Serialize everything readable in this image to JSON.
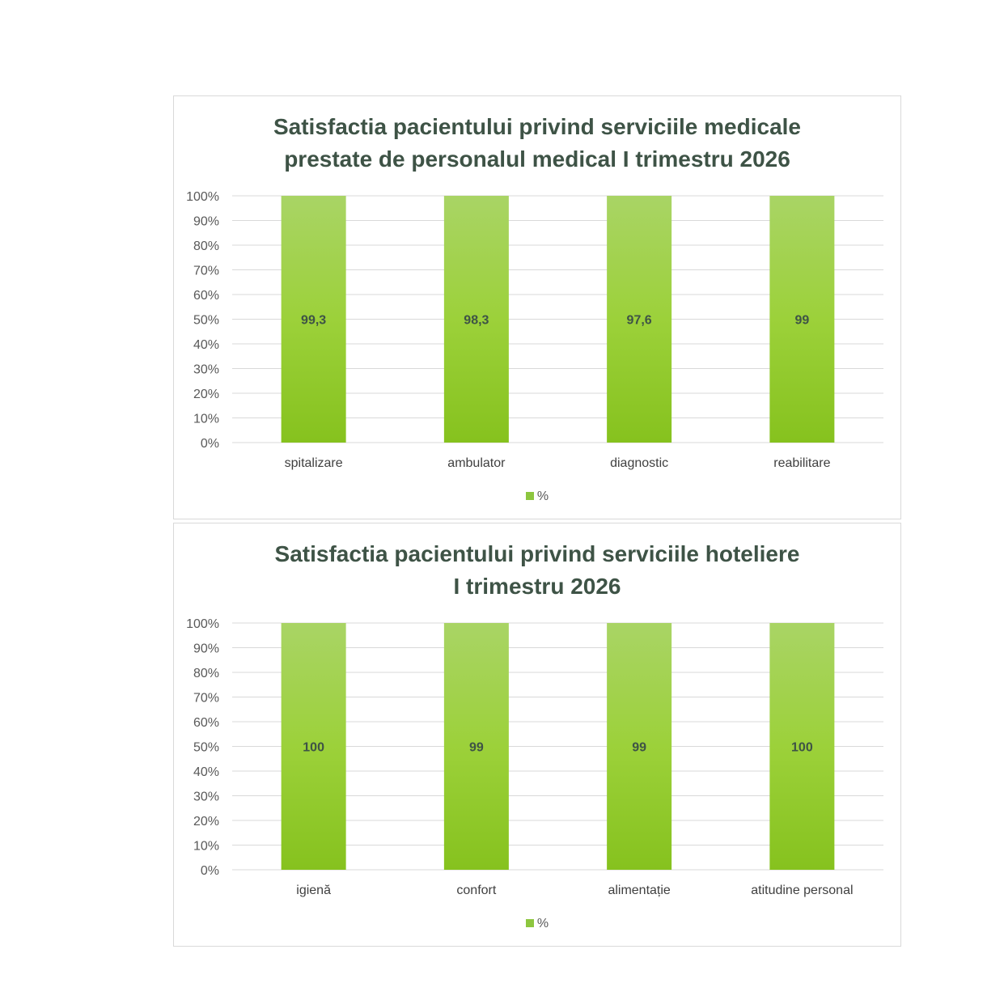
{
  "colors": {
    "bar_top": "#a9d465",
    "bar_bottom": "#86c21e",
    "gridline": "#d9d9d9",
    "title": "#3e5346"
  },
  "chart_data": [
    {
      "type": "bar",
      "title_lines": [
        "Satisfactia pacientului privind serviciile medicale",
        "prestate de personalul medical I trimestru 2026"
      ],
      "categories": [
        "spitalizare",
        "ambulator",
        "diagnostic",
        "reabilitare"
      ],
      "series": [
        {
          "name": "%",
          "values": [
            99.3,
            98.3,
            97.6,
            99
          ],
          "labels": [
            "99,3",
            "98,3",
            "97,6",
            "99"
          ]
        }
      ],
      "yticks": [
        "0%",
        "10%",
        "20%",
        "30%",
        "40%",
        "50%",
        "60%",
        "70%",
        "80%",
        "90%",
        "100%"
      ],
      "display": "100% stacked",
      "ylim": [
        0,
        100
      ],
      "grid": true,
      "legend": "bottom"
    },
    {
      "type": "bar",
      "title_lines": [
        "Satisfactia pacientului privind serviciile hoteliere",
        "I trimestru 2026"
      ],
      "categories": [
        "igienă",
        "confort",
        "alimentație",
        "atitudine personal"
      ],
      "series": [
        {
          "name": "%",
          "values": [
            100,
            99,
            99,
            100
          ],
          "labels": [
            "100",
            "99",
            "99",
            "100"
          ]
        }
      ],
      "yticks": [
        "0%",
        "10%",
        "20%",
        "30%",
        "40%",
        "50%",
        "60%",
        "70%",
        "80%",
        "90%",
        "100%"
      ],
      "display": "100% stacked",
      "ylim": [
        0,
        100
      ],
      "grid": true,
      "legend": "bottom"
    }
  ]
}
